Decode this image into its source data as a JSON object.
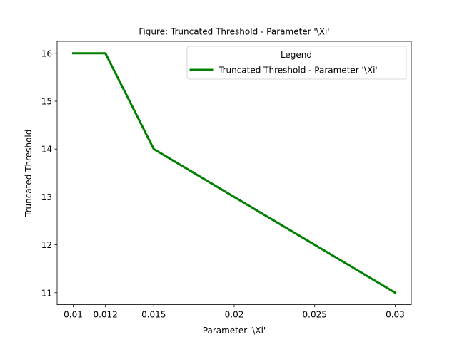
{
  "chart_data": {
    "type": "line",
    "title": "Figure: Truncated Threshold - Parameter '\\Xi'",
    "xlabel": "Parameter '\\Xi'",
    "ylabel": "Truncated Threshold",
    "x": [
      0.01,
      0.012,
      0.015,
      0.02,
      0.025,
      0.03
    ],
    "series": [
      {
        "name": "Truncated Threshold - Parameter '\\Xi'",
        "values": [
          16,
          16,
          14,
          13,
          12,
          11
        ],
        "color": "#008000"
      }
    ],
    "xticks": [
      0.01,
      0.012,
      0.015,
      0.02,
      0.025,
      0.03
    ],
    "xtick_labels": [
      "0.01",
      "0.012",
      "0.015",
      "0.02",
      "0.025",
      "0.03"
    ],
    "yticks": [
      11,
      12,
      13,
      14,
      15,
      16
    ],
    "ytick_labels": [
      "11",
      "12",
      "13",
      "14",
      "15",
      "16"
    ],
    "xlim": [
      0.009,
      0.031
    ],
    "ylim": [
      10.75,
      16.25
    ],
    "grid": false,
    "legend": {
      "title": "Legend",
      "location": "upper right"
    }
  }
}
